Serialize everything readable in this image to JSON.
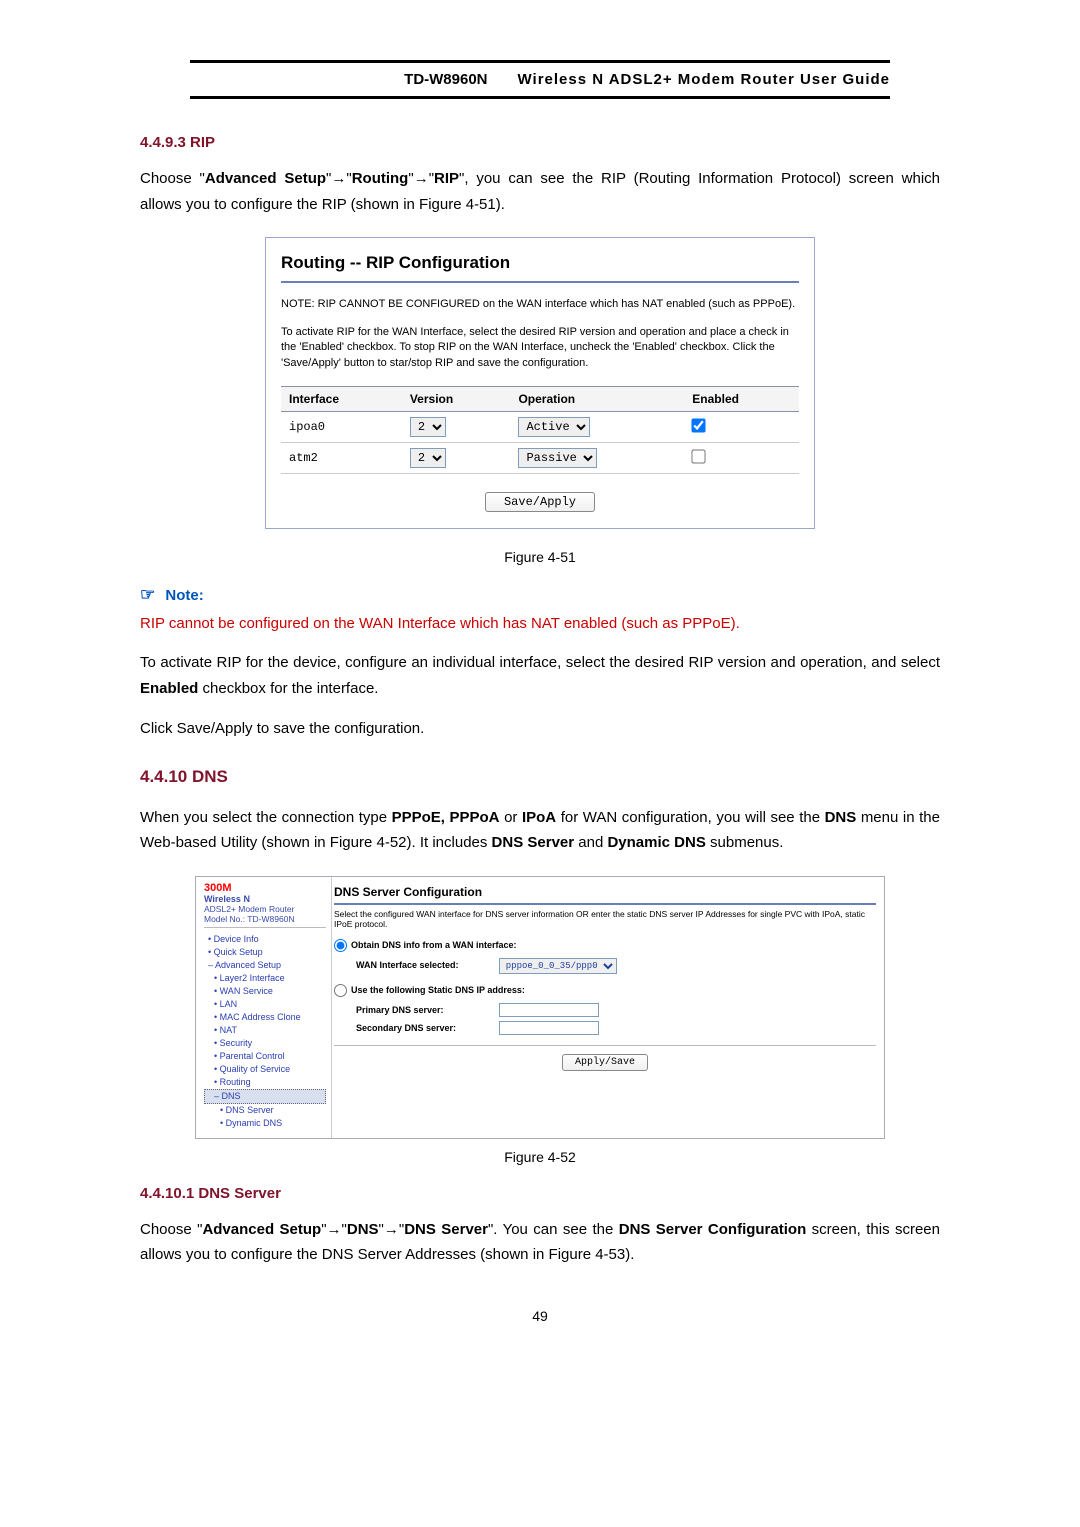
{
  "header": {
    "model": "TD-W8960N",
    "title": "Wireless N ADSL2+ Modem Router User Guide"
  },
  "sec4493": {
    "heading": "4.4.9.3   RIP",
    "para_pre": "Choose \"",
    "b1": "Advanced Setup",
    "arrow": "→",
    "b2": "Routing",
    "b3": "RIP",
    "para_post": "\", you can see the RIP (Routing Information Protocol) screen which allows you to configure the RIP (shown in Figure 4-51)."
  },
  "fig51": {
    "title": "Routing -- RIP Configuration",
    "note": "NOTE: RIP CANNOT BE CONFIGURED on the WAN interface which has NAT enabled (such as PPPoE).",
    "desc": "To activate RIP for the WAN Interface, select the desired RIP version and operation and place a check in the 'Enabled' checkbox. To stop RIP on the WAN Interface, uncheck the 'Enabled' checkbox. Click the 'Save/Apply' button to star/stop RIP and save the configuration.",
    "cols": {
      "c1": "Interface",
      "c2": "Version",
      "c3": "Operation",
      "c4": "Enabled"
    },
    "rows": [
      {
        "if": "ipoa0",
        "ver": "2",
        "op": "Active",
        "checked": true
      },
      {
        "if": "atm2",
        "ver": "2",
        "op": "Passive",
        "checked": false
      }
    ],
    "save": "Save/Apply",
    "caption": "Figure 4-51"
  },
  "note": {
    "head": "Note:",
    "text": "RIP cannot be configured on the WAN Interface which has NAT enabled (such as PPPoE)."
  },
  "afterNote": {
    "p1_a": "To activate RIP for the device, configure an individual interface, select the desired RIP version and operation, and select ",
    "p1_b": "Enabled",
    "p1_c": " checkbox for the interface.",
    "p2": "Click Save/Apply to save the configuration."
  },
  "sec4410": {
    "heading": "4.4.10 DNS",
    "para_a": "When you select the connection type ",
    "bpp": "PPPoE, PPPoA",
    "or": " or ",
    "bip": "IPoA",
    "para_b": " for WAN configuration, you will see the ",
    "bdns": "DNS",
    "para_c": " menu in the Web-based Utility (shown in Figure 4-52). It includes ",
    "bds": "DNS Server",
    "and": " and ",
    "bdd": "Dynamic DNS",
    "para_d": " submenus."
  },
  "fig52": {
    "caption": "Figure 4-52",
    "side": {
      "brand": "300M",
      "brand2": "Wireless N",
      "brand3": "ADSL2+ Modem Router",
      "model": "Model No.: TD-W8960N",
      "items": [
        {
          "t": "• Device Info",
          "cls": ""
        },
        {
          "t": "• Quick Setup",
          "cls": ""
        },
        {
          "t": "– Advanced Setup",
          "cls": ""
        },
        {
          "t": "• Layer2 Interface",
          "cls": "sub"
        },
        {
          "t": "• WAN Service",
          "cls": "sub"
        },
        {
          "t": "• LAN",
          "cls": "sub"
        },
        {
          "t": "• MAC Address Clone",
          "cls": "sub"
        },
        {
          "t": "• NAT",
          "cls": "sub"
        },
        {
          "t": "• Security",
          "cls": "sub"
        },
        {
          "t": "• Parental Control",
          "cls": "sub"
        },
        {
          "t": "• Quality of Service",
          "cls": "sub"
        },
        {
          "t": "• Routing",
          "cls": "sub"
        },
        {
          "t": "– DNS",
          "cls": "sub active"
        },
        {
          "t": "• DNS Server",
          "cls": "sub2"
        },
        {
          "t": "• Dynamic DNS",
          "cls": "sub2"
        }
      ]
    },
    "main": {
      "h": "DNS Server Configuration",
      "desc": "Select the configured WAN interface for DNS server information OR enter the static DNS server IP Addresses for single PVC with IPoA, static IPoE protocol.",
      "r1": "Obtain DNS info from a WAN interface:",
      "wanlabel": "WAN Interface selected:",
      "wanval": "pppoe_0_0_35/ppp0",
      "r2": "Use the following Static DNS IP address:",
      "pri": "Primary DNS server:",
      "sec": "Secondary DNS server:",
      "apply": "Apply/Save"
    }
  },
  "sec44101": {
    "heading": "4.4.10.1 DNS Server",
    "pre": "Choose \"",
    "b1": "Advanced Setup",
    "b2": "DNS",
    "b3": "DNS Server",
    "mid": "\". You can see the ",
    "b4": "DNS Server Configuration",
    "post": " screen, this screen allows you to configure the DNS Server Addresses (shown in Figure 4-53)."
  },
  "pageNum": "49"
}
